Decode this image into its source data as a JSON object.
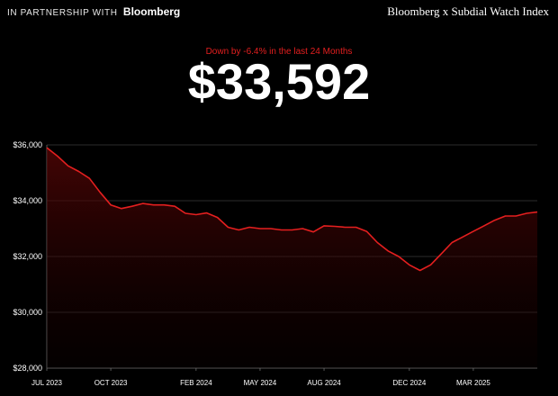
{
  "header": {
    "partnership_text": "IN PARTNERSHIP WITH",
    "partner_brand": "Bloomberg",
    "index_title": "Bloomberg x Subdial Watch Index"
  },
  "summary": {
    "change_text": "Down by -6.4% in the last 24 Months",
    "current_value": "$33,592"
  },
  "colors": {
    "background": "#000000",
    "line": "#e41f1f",
    "grid": "#3a3a3a",
    "text": "#ffffff"
  },
  "chart_data": {
    "type": "area",
    "title": "",
    "xlabel": "",
    "ylabel": "",
    "ylim": [
      28000,
      36000
    ],
    "yticks": [
      "$28,000",
      "$30,000",
      "$32,000",
      "$34,000",
      "$36,000"
    ],
    "ytick_values": [
      28000,
      30000,
      32000,
      34000,
      36000
    ],
    "xticks": [
      "JUL 2023",
      "OCT 2023",
      "FEB 2024",
      "MAY 2024",
      "AUG 2024",
      "DEC 2024",
      "MAR 2025"
    ],
    "xtick_positions": [
      0,
      3,
      7,
      10,
      13,
      17,
      20
    ],
    "x_range": [
      0,
      23
    ],
    "grid": "horizontal",
    "series": [
      {
        "x": [
          0,
          0.5,
          1,
          1.5,
          2,
          2.5,
          3,
          3.5,
          4,
          4.5,
          5,
          5.5,
          6,
          6.5,
          7,
          7.5,
          8,
          8.5,
          9,
          9.5,
          10,
          10.5,
          11,
          11.5,
          12,
          12.5,
          13,
          13.5,
          14,
          14.5,
          15,
          15.5,
          16,
          16.5,
          17,
          17.5,
          18,
          18.5,
          19,
          19.5,
          20,
          20.5,
          21,
          21.5,
          22,
          22.5,
          23
        ],
        "values": [
          35900,
          35600,
          35250,
          35050,
          34800,
          34300,
          33850,
          33720,
          33800,
          33900,
          33850,
          33850,
          33800,
          33550,
          33500,
          33560,
          33400,
          33050,
          32950,
          33050,
          33000,
          33000,
          32950,
          32950,
          33000,
          32880,
          33100,
          33080,
          33050,
          33050,
          32900,
          32500,
          32200,
          32000,
          31700,
          31500,
          31700,
          32100,
          32500,
          32700,
          32900,
          33100,
          33300,
          33450,
          33450,
          33550,
          33592
        ]
      }
    ]
  }
}
